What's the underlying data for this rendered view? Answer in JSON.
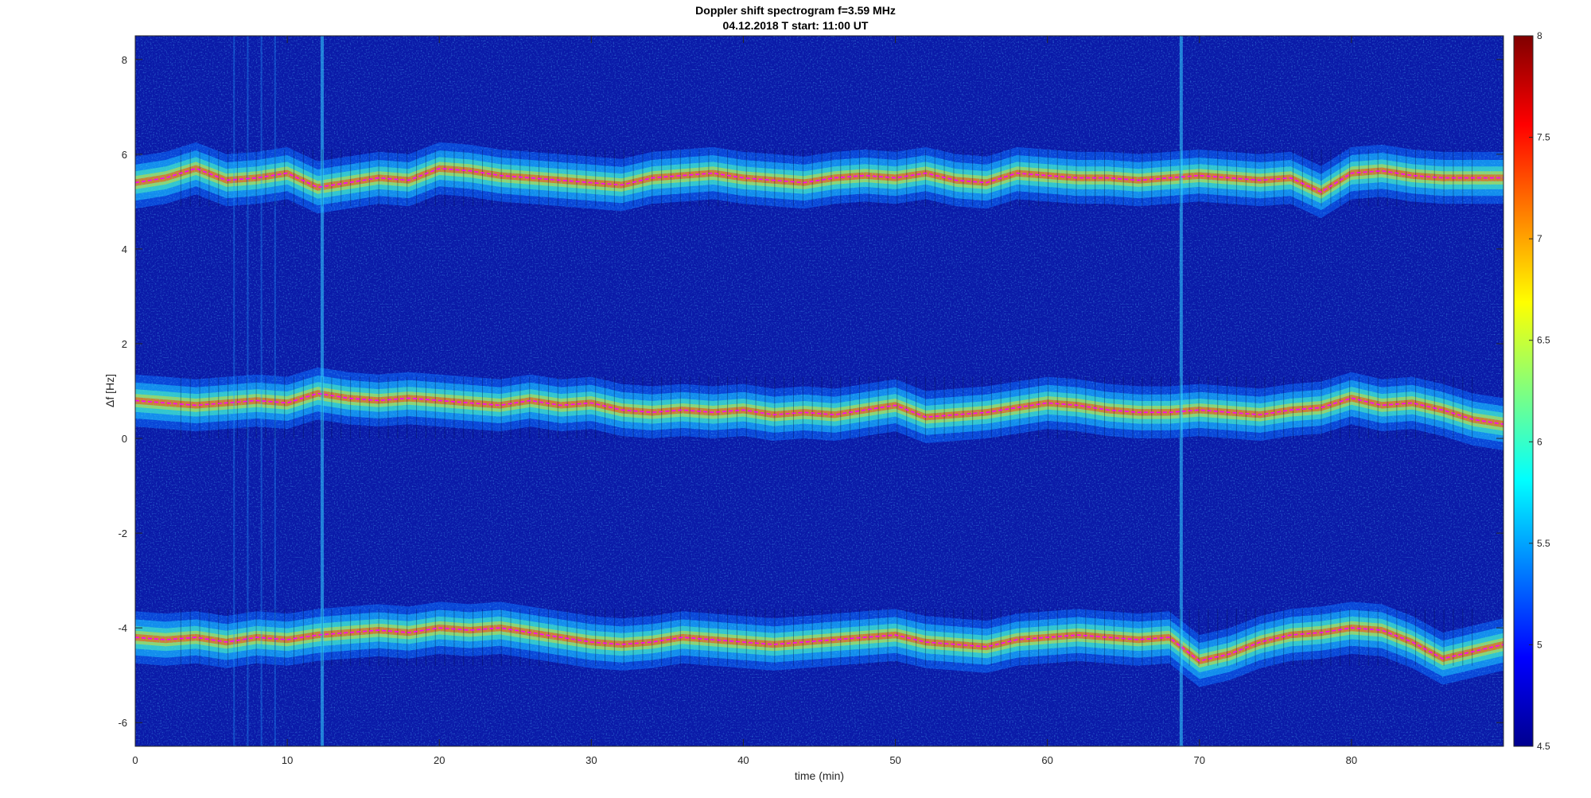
{
  "chart_data": {
    "type": "heatmap",
    "title": "Doppler shift spectrogram f=3.59 MHz",
    "subtitle": "04.12.2018   T start: 11:00 UT",
    "xlabel": "time (min)",
    "ylabel": "Δf [Hz]",
    "xlim": [
      0,
      90
    ],
    "ylim": [
      -6.5,
      8.5
    ],
    "xticks": [
      0,
      10,
      20,
      30,
      40,
      50,
      60,
      70,
      80
    ],
    "yticks": [
      -6,
      -4,
      -2,
      0,
      2,
      4,
      6,
      8
    ],
    "colorbar": {
      "colormap": "jet",
      "clim": [
        4.5,
        8
      ],
      "ticks": [
        4.5,
        5,
        5.5,
        6,
        6.5,
        7,
        7.5,
        8
      ]
    },
    "series": [
      {
        "line_color": "#ff00ff",
        "x": [
          0,
          2,
          4,
          6,
          8,
          10,
          12,
          14,
          16,
          18,
          20,
          22,
          24,
          26,
          28,
          30,
          32,
          34,
          36,
          38,
          40,
          42,
          44,
          46,
          48,
          50,
          52,
          54,
          56,
          58,
          60,
          62,
          64,
          66,
          68,
          70,
          72,
          74,
          76,
          78,
          80,
          82,
          84,
          86,
          88,
          90
        ],
        "y": [
          5.4,
          5.5,
          5.7,
          5.45,
          5.5,
          5.6,
          5.3,
          5.4,
          5.5,
          5.45,
          5.7,
          5.65,
          5.55,
          5.5,
          5.45,
          5.4,
          5.35,
          5.5,
          5.55,
          5.6,
          5.5,
          5.45,
          5.4,
          5.5,
          5.55,
          5.5,
          5.6,
          5.45,
          5.4,
          5.6,
          5.55,
          5.5,
          5.5,
          5.45,
          5.5,
          5.55,
          5.5,
          5.45,
          5.5,
          5.2,
          5.6,
          5.65,
          5.55,
          5.5,
          5.5,
          5.5
        ]
      },
      {
        "line_color": "#ff00ff",
        "x": [
          0,
          2,
          4,
          6,
          8,
          10,
          12,
          14,
          16,
          18,
          20,
          22,
          24,
          26,
          28,
          30,
          32,
          34,
          36,
          38,
          40,
          42,
          44,
          46,
          48,
          50,
          52,
          54,
          56,
          58,
          60,
          62,
          64,
          66,
          68,
          70,
          72,
          74,
          76,
          78,
          80,
          82,
          84,
          86,
          88,
          90
        ],
        "y": [
          0.8,
          0.75,
          0.7,
          0.75,
          0.8,
          0.75,
          0.95,
          0.85,
          0.8,
          0.85,
          0.8,
          0.75,
          0.7,
          0.8,
          0.7,
          0.75,
          0.6,
          0.55,
          0.6,
          0.55,
          0.6,
          0.5,
          0.55,
          0.5,
          0.6,
          0.7,
          0.45,
          0.5,
          0.55,
          0.65,
          0.75,
          0.7,
          0.6,
          0.55,
          0.55,
          0.6,
          0.55,
          0.5,
          0.6,
          0.65,
          0.85,
          0.7,
          0.75,
          0.6,
          0.4,
          0.3
        ]
      },
      {
        "line_color": "#ff00ff",
        "x": [
          0,
          2,
          4,
          6,
          8,
          10,
          12,
          14,
          16,
          18,
          20,
          22,
          24,
          26,
          28,
          30,
          32,
          34,
          36,
          38,
          40,
          42,
          44,
          46,
          48,
          50,
          52,
          54,
          56,
          58,
          60,
          62,
          64,
          66,
          68,
          70,
          72,
          74,
          76,
          78,
          80,
          82,
          84,
          86,
          88,
          90
        ],
        "y": [
          -4.2,
          -4.25,
          -4.2,
          -4.3,
          -4.2,
          -4.25,
          -4.15,
          -4.1,
          -4.05,
          -4.1,
          -4.0,
          -4.05,
          -4.0,
          -4.1,
          -4.2,
          -4.3,
          -4.35,
          -4.3,
          -4.2,
          -4.25,
          -4.3,
          -4.35,
          -4.3,
          -4.25,
          -4.2,
          -4.15,
          -4.3,
          -4.35,
          -4.4,
          -4.25,
          -4.2,
          -4.15,
          -4.2,
          -4.25,
          -4.2,
          -4.7,
          -4.55,
          -4.3,
          -4.15,
          -4.1,
          -4.0,
          -4.05,
          -4.3,
          -4.65,
          -4.5,
          -4.35
        ]
      }
    ]
  }
}
